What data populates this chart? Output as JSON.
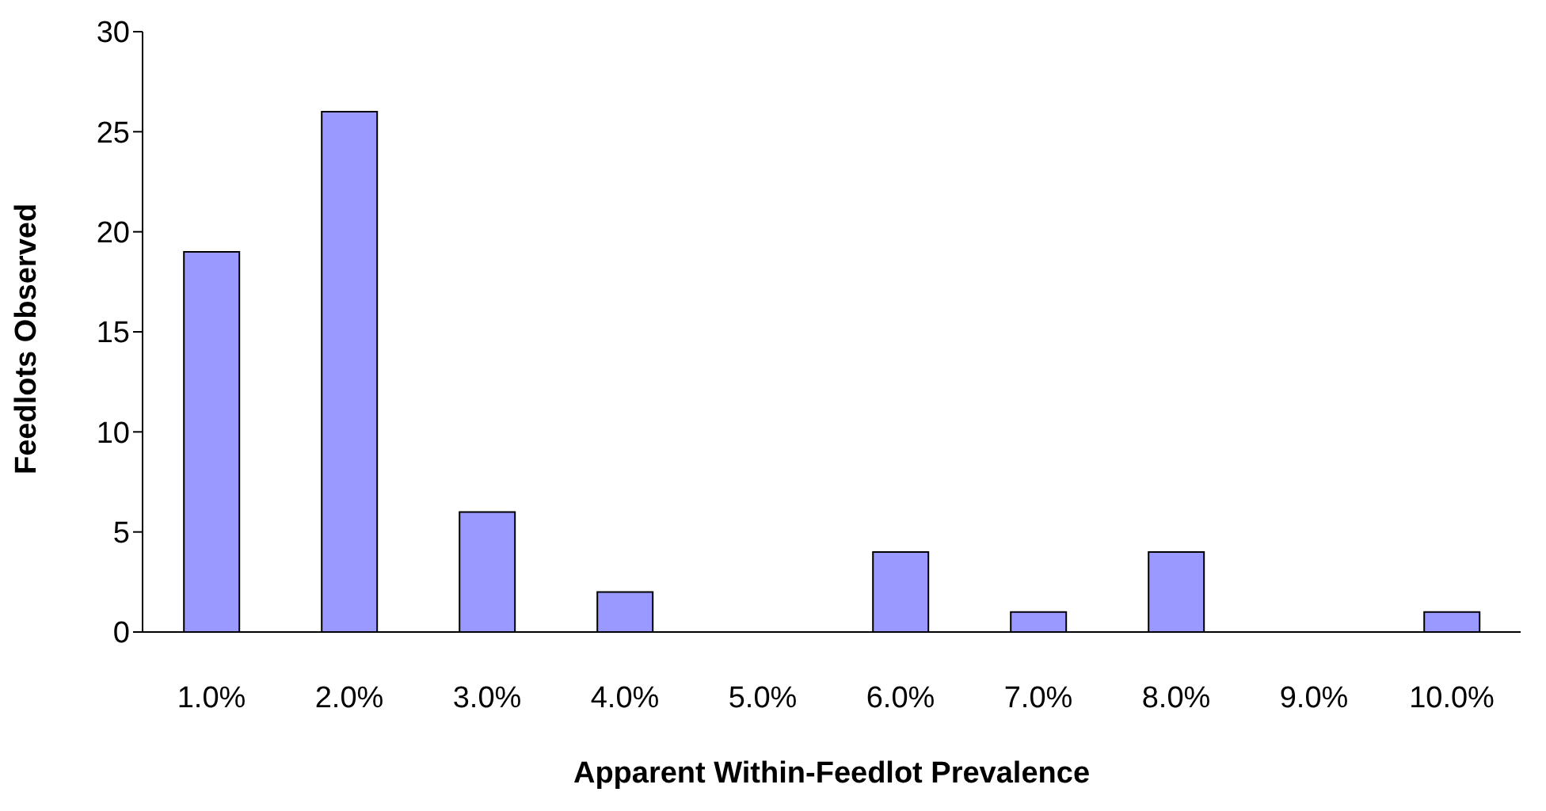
{
  "chart_data": {
    "type": "bar",
    "xlabel": "Apparent Within-Feedlot Prevalence",
    "ylabel": "Feedlots Observed",
    "categories": [
      "1.0%",
      "2.0%",
      "3.0%",
      "4.0%",
      "5.0%",
      "6.0%",
      "7.0%",
      "8.0%",
      "9.0%",
      "10.0%"
    ],
    "values": [
      19,
      26,
      6,
      2,
      0,
      4,
      1,
      4,
      0,
      1
    ],
    "color": "#9999ff",
    "ylim": [
      0,
      30
    ],
    "yticks": [
      0,
      5,
      10,
      15,
      20,
      25,
      30
    ],
    "grid": false,
    "legend": false
  }
}
